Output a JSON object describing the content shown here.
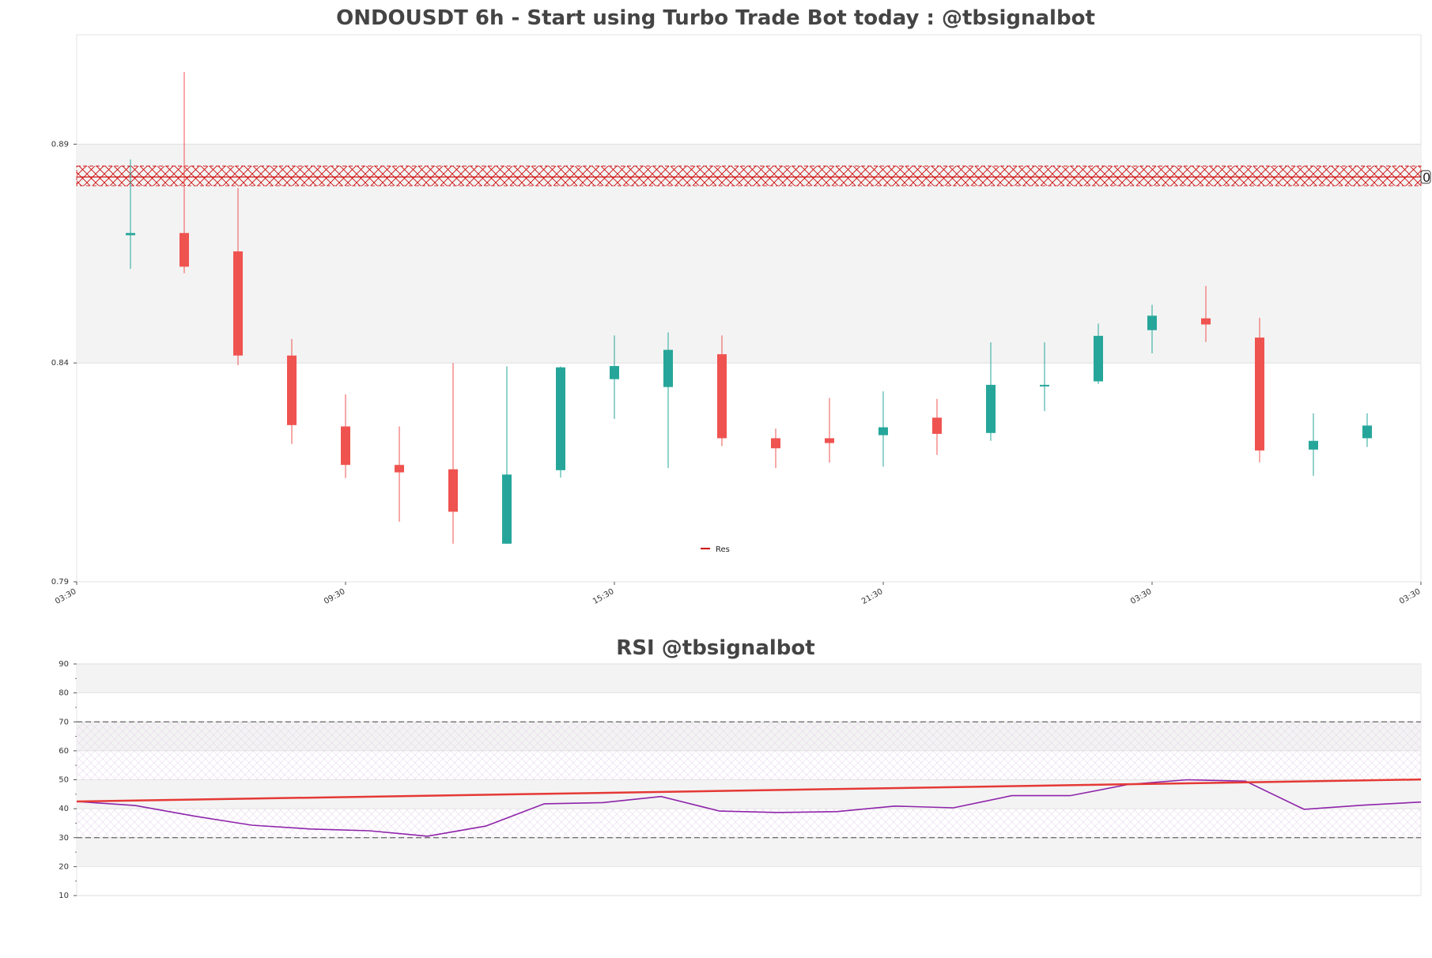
{
  "colors": {
    "bull": "#26a69a",
    "bear": "#ef5350",
    "resistance": "#cc0000",
    "rsi_line": "#8e24aa",
    "rsi_trend": "#e53935",
    "band_fill": "#f3f3f3",
    "grid": "#dddddd"
  },
  "chart_data": [
    {
      "type": "candlestick",
      "title": "ONDOUSDT 6h - Start using Turbo Trade Bot today : @tbsignalbot",
      "ylim": [
        0.79,
        0.915
      ],
      "yticks": [
        "0.89",
        "0.84",
        "0.79"
      ],
      "xticks": [
        "03:30",
        "09:30",
        "15:30",
        "21:30",
        "03:30",
        "03:30"
      ],
      "shaded_band": [
        0.84,
        0.89
      ],
      "resistance": {
        "label": "Res",
        "value": 0.8825,
        "zone": [
          0.8805,
          0.885
        ],
        "marker_text": "0"
      },
      "legend": "lower-center",
      "candles": [
        {
          "o": 0.8692,
          "h": 0.8865,
          "l": 0.8615,
          "c": 0.8697
        },
        {
          "o": 0.8697,
          "h": 0.9065,
          "l": 0.8605,
          "c": 0.862
        },
        {
          "o": 0.8655,
          "h": 0.88,
          "l": 0.8395,
          "c": 0.8417
        },
        {
          "o": 0.8417,
          "h": 0.8455,
          "l": 0.8215,
          "c": 0.8258
        },
        {
          "o": 0.8255,
          "h": 0.8328,
          "l": 0.8137,
          "c": 0.8167
        },
        {
          "o": 0.8167,
          "h": 0.8255,
          "l": 0.8037,
          "c": 0.815
        },
        {
          "o": 0.8157,
          "h": 0.84,
          "l": 0.7987,
          "c": 0.806
        },
        {
          "o": 0.7987,
          "h": 0.8392,
          "l": 0.7987,
          "c": 0.8145
        },
        {
          "o": 0.8155,
          "h": 0.8392,
          "l": 0.8138,
          "c": 0.839
        },
        {
          "o": 0.8363,
          "h": 0.8463,
          "l": 0.8272,
          "c": 0.8393
        },
        {
          "o": 0.8345,
          "h": 0.847,
          "l": 0.816,
          "c": 0.843
        },
        {
          "o": 0.842,
          "h": 0.8463,
          "l": 0.821,
          "c": 0.8228
        },
        {
          "o": 0.8228,
          "h": 0.825,
          "l": 0.816,
          "c": 0.8205
        },
        {
          "o": 0.8228,
          "h": 0.832,
          "l": 0.8172,
          "c": 0.8217
        },
        {
          "o": 0.8235,
          "h": 0.8335,
          "l": 0.8163,
          "c": 0.8253
        },
        {
          "o": 0.8275,
          "h": 0.8318,
          "l": 0.819,
          "c": 0.8238
        },
        {
          "o": 0.824,
          "h": 0.8447,
          "l": 0.8222,
          "c": 0.835
        },
        {
          "o": 0.8347,
          "h": 0.8447,
          "l": 0.829,
          "c": 0.835
        },
        {
          "o": 0.8358,
          "h": 0.849,
          "l": 0.8352,
          "c": 0.8462
        },
        {
          "o": 0.8475,
          "h": 0.8533,
          "l": 0.8422,
          "c": 0.8508
        },
        {
          "o": 0.8502,
          "h": 0.8576,
          "l": 0.8448,
          "c": 0.8488
        },
        {
          "o": 0.8458,
          "h": 0.8503,
          "l": 0.8173,
          "c": 0.82
        },
        {
          "o": 0.8202,
          "h": 0.8285,
          "l": 0.8142,
          "c": 0.8222
        },
        {
          "o": 0.8228,
          "h": 0.8285,
          "l": 0.8208,
          "c": 0.8257
        }
      ]
    },
    {
      "type": "line",
      "title": "RSI @tbsignalbot",
      "ylim": [
        10,
        90
      ],
      "yticks": [
        "90",
        "80",
        "70",
        "60",
        "50",
        "40",
        "30",
        "20",
        "10"
      ],
      "hlines": [
        70,
        30
      ],
      "shaded_bands": [
        [
          80,
          90
        ],
        [
          60,
          70
        ],
        [
          40,
          50
        ],
        [
          20,
          30
        ]
      ],
      "series": [
        {
          "values": [
            42.5,
            41.1,
            37.5,
            34.3,
            33.0,
            32.4,
            30.5,
            34.0,
            41.7,
            42.1,
            44.2,
            39.2,
            38.7,
            39.0,
            40.9,
            40.3,
            44.5,
            44.5,
            48.4,
            50.0,
            49.5,
            39.8,
            41.2,
            42.3
          ]
        }
      ],
      "trend_line": [
        42.5,
        50.1
      ]
    }
  ]
}
